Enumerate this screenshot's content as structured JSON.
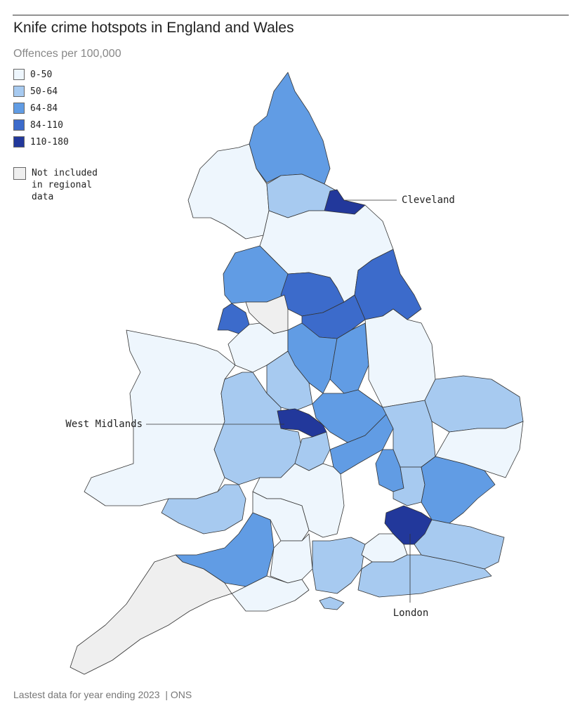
{
  "header": {
    "title": "Knife crime hotspots in England and Wales"
  },
  "legend": {
    "title": "Offences per 100,000",
    "items": [
      {
        "label": "0-50",
        "color": "#eef6fd"
      },
      {
        "label": "50-64",
        "color": "#a7caf0"
      },
      {
        "label": "64-84",
        "color": "#619ce4"
      },
      {
        "label": "84-110",
        "color": "#3c6bcb"
      },
      {
        "label": "110-180",
        "color": "#22389b"
      }
    ],
    "not_included": {
      "label": "Not included in regional data",
      "color": "#efefef"
    }
  },
  "callouts": [
    "Cleveland",
    "West Midlands",
    "London"
  ],
  "footer": {
    "note": "Lastest data for year ending 2023",
    "source": "ONS"
  }
}
